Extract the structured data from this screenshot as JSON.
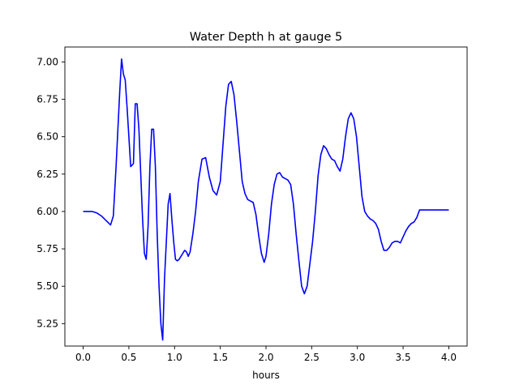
{
  "chart_data": {
    "type": "line",
    "title": "Water Depth h at gauge 5",
    "xlabel": "hours",
    "ylabel": "",
    "xlim": [
      -0.2,
      4.2
    ],
    "ylim": [
      5.1,
      7.1
    ],
    "xticks": [
      0.0,
      0.5,
      1.0,
      1.5,
      2.0,
      2.5,
      3.0,
      3.5,
      4.0
    ],
    "xtick_labels": [
      "0.0",
      "0.5",
      "1.0",
      "1.5",
      "2.0",
      "2.5",
      "3.0",
      "3.5",
      "4.0"
    ],
    "yticks": [
      5.25,
      5.5,
      5.75,
      6.0,
      6.25,
      6.5,
      6.75,
      7.0
    ],
    "ytick_labels": [
      "5.25",
      "5.50",
      "5.75",
      "6.00",
      "6.25",
      "6.50",
      "6.75",
      "7.00"
    ],
    "grid": false,
    "legend": false,
    "series": [
      {
        "color": "#0000ff",
        "x": [
          0.0,
          0.05,
          0.1,
          0.15,
          0.2,
          0.25,
          0.3,
          0.33,
          0.36,
          0.38,
          0.4,
          0.42,
          0.44,
          0.46,
          0.48,
          0.5,
          0.52,
          0.55,
          0.57,
          0.59,
          0.61,
          0.63,
          0.65,
          0.67,
          0.69,
          0.71,
          0.73,
          0.75,
          0.77,
          0.79,
          0.81,
          0.83,
          0.85,
          0.87,
          0.89,
          0.91,
          0.93,
          0.95,
          0.97,
          0.99,
          1.01,
          1.03,
          1.05,
          1.07,
          1.09,
          1.11,
          1.13,
          1.15,
          1.17,
          1.2,
          1.23,
          1.26,
          1.3,
          1.34,
          1.38,
          1.42,
          1.46,
          1.5,
          1.53,
          1.56,
          1.59,
          1.62,
          1.65,
          1.68,
          1.71,
          1.74,
          1.77,
          1.8,
          1.83,
          1.86,
          1.89,
          1.92,
          1.95,
          1.98,
          2.0,
          2.03,
          2.06,
          2.09,
          2.12,
          2.15,
          2.18,
          2.21,
          2.24,
          2.27,
          2.3,
          2.33,
          2.36,
          2.39,
          2.42,
          2.45,
          2.48,
          2.51,
          2.54,
          2.57,
          2.6,
          2.63,
          2.66,
          2.69,
          2.72,
          2.75,
          2.78,
          2.81,
          2.84,
          2.87,
          2.9,
          2.93,
          2.96,
          2.99,
          3.02,
          3.05,
          3.08,
          3.11,
          3.14,
          3.17,
          3.2,
          3.23,
          3.26,
          3.29,
          3.32,
          3.35,
          3.38,
          3.41,
          3.44,
          3.47,
          3.5,
          3.53,
          3.56,
          3.59,
          3.62,
          3.65,
          3.68,
          3.71,
          3.74,
          3.77,
          3.8,
          3.83,
          3.86,
          3.89,
          3.92,
          3.95,
          3.98,
          4.0
        ],
        "y": [
          6.0,
          6.0,
          6.0,
          5.99,
          5.97,
          5.94,
          5.91,
          5.97,
          6.3,
          6.55,
          6.8,
          7.02,
          6.92,
          6.88,
          6.7,
          6.5,
          6.3,
          6.32,
          6.72,
          6.72,
          6.55,
          6.25,
          5.95,
          5.72,
          5.68,
          5.9,
          6.3,
          6.55,
          6.55,
          6.3,
          5.85,
          5.5,
          5.25,
          5.14,
          5.55,
          5.8,
          6.05,
          6.12,
          5.95,
          5.8,
          5.68,
          5.67,
          5.68,
          5.7,
          5.72,
          5.74,
          5.73,
          5.7,
          5.73,
          5.85,
          6.0,
          6.2,
          6.35,
          6.36,
          6.23,
          6.14,
          6.11,
          6.2,
          6.45,
          6.7,
          6.85,
          6.87,
          6.78,
          6.6,
          6.4,
          6.2,
          6.12,
          6.08,
          6.07,
          6.06,
          5.98,
          5.84,
          5.72,
          5.66,
          5.7,
          5.85,
          6.05,
          6.18,
          6.25,
          6.26,
          6.23,
          6.22,
          6.21,
          6.18,
          6.05,
          5.85,
          5.67,
          5.5,
          5.45,
          5.5,
          5.65,
          5.8,
          6.0,
          6.24,
          6.38,
          6.44,
          6.42,
          6.38,
          6.35,
          6.34,
          6.3,
          6.27,
          6.35,
          6.5,
          6.62,
          6.66,
          6.62,
          6.5,
          6.3,
          6.1,
          6.0,
          5.97,
          5.95,
          5.94,
          5.92,
          5.88,
          5.8,
          5.74,
          5.74,
          5.76,
          5.79,
          5.8,
          5.8,
          5.79,
          5.83,
          5.87,
          5.9,
          5.92,
          5.93,
          5.96,
          6.01,
          6.01,
          6.01,
          6.01,
          6.01,
          6.01,
          6.01,
          6.01,
          6.01,
          6.01,
          6.01,
          6.01
        ]
      }
    ]
  }
}
